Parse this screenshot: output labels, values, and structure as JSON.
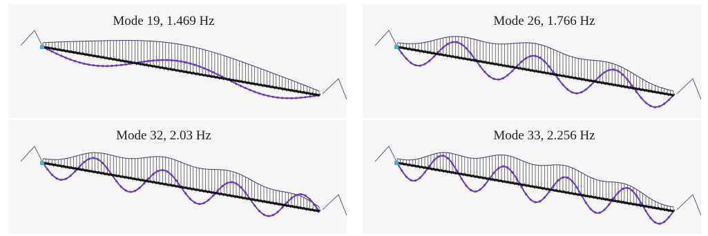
{
  "panels": [
    {
      "title": "Mode 19, 1.469 Hz",
      "mode": 19,
      "frequency_hz": 1.469
    },
    {
      "title": "Mode 26, 1.766 Hz",
      "mode": 26,
      "frequency_hz": 1.766
    },
    {
      "title": "Mode 32, 2.03 Hz",
      "mode": 32,
      "frequency_hz": 2.03
    },
    {
      "title": "Mode 33, 2.256 Hz",
      "mode": 33,
      "frequency_hz": 2.256
    }
  ],
  "colors": {
    "deck": "#111111",
    "mode_shape": "#6a35c8",
    "cable": "#3a3a6a",
    "support": "#3fb3d6",
    "background": "#f6f6f6"
  }
}
